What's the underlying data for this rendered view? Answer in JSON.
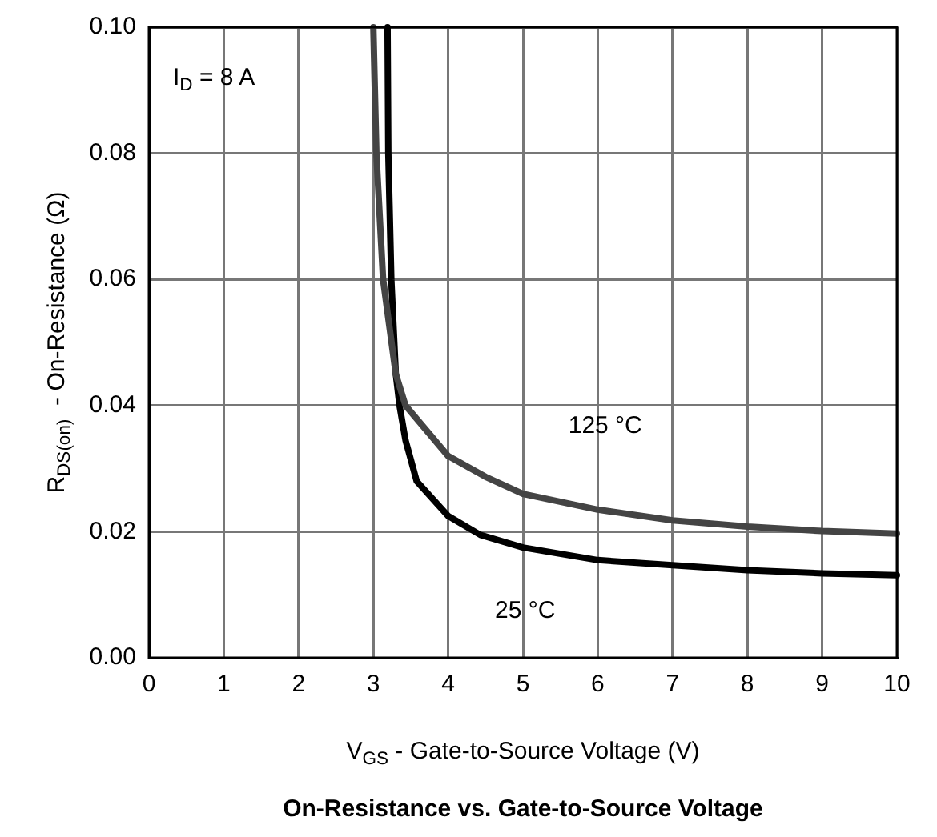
{
  "chart_data": {
    "type": "line",
    "title": "On-Resistance vs. Gate-to-Source Voltage",
    "xlabel": "V$_{GS}$ - Gate-to-Source Voltage (V)",
    "ylabel": "R$_{DS(on)}$  - On-Resistance (Ω)",
    "series": [
      {
        "name": "125 °C",
        "color": "#444444",
        "x": [
          3.0,
          3.04,
          3.13,
          3.3,
          3.43,
          4.0,
          4.5,
          5.0,
          6.0,
          7.0,
          8.0,
          9.0,
          10.0
        ],
        "values": [
          0.1,
          0.08,
          0.06,
          0.045,
          0.04,
          0.032,
          0.0287,
          0.026,
          0.0235,
          0.0218,
          0.0208,
          0.0201,
          0.0197
        ]
      },
      {
        "name": "25 °C",
        "color": "#000000",
        "x": [
          3.19,
          3.2,
          3.24,
          3.3,
          3.35,
          3.43,
          3.58,
          4.0,
          4.43,
          5.0,
          6.0,
          7.0,
          8.0,
          9.0,
          10.0
        ],
        "values": [
          0.1,
          0.08,
          0.06,
          0.045,
          0.04,
          0.0345,
          0.028,
          0.0225,
          0.0195,
          0.0175,
          0.0155,
          0.0147,
          0.0139,
          0.0134,
          0.0131
        ]
      }
    ],
    "annotations": [
      "I$_{D}$ = 8 A"
    ],
    "xlim": [
      0,
      10
    ],
    "xticks": [
      0,
      1,
      2,
      3,
      4,
      5,
      6,
      7,
      8,
      9,
      10
    ],
    "ylim": [
      0,
      0.1
    ],
    "yticks": [
      {
        "value": 0,
        "label": "0.00"
      },
      {
        "value": 0.02,
        "label": "0.02"
      },
      {
        "value": 0.04,
        "label": "0.04"
      },
      {
        "value": 0.06,
        "label": "0.06"
      },
      {
        "value": 0.08,
        "label": "0.08"
      },
      {
        "value": 0.1,
        "label": "0.10"
      }
    ],
    "grid": true,
    "legend": false,
    "marker": "none",
    "line_style": "solid"
  }
}
